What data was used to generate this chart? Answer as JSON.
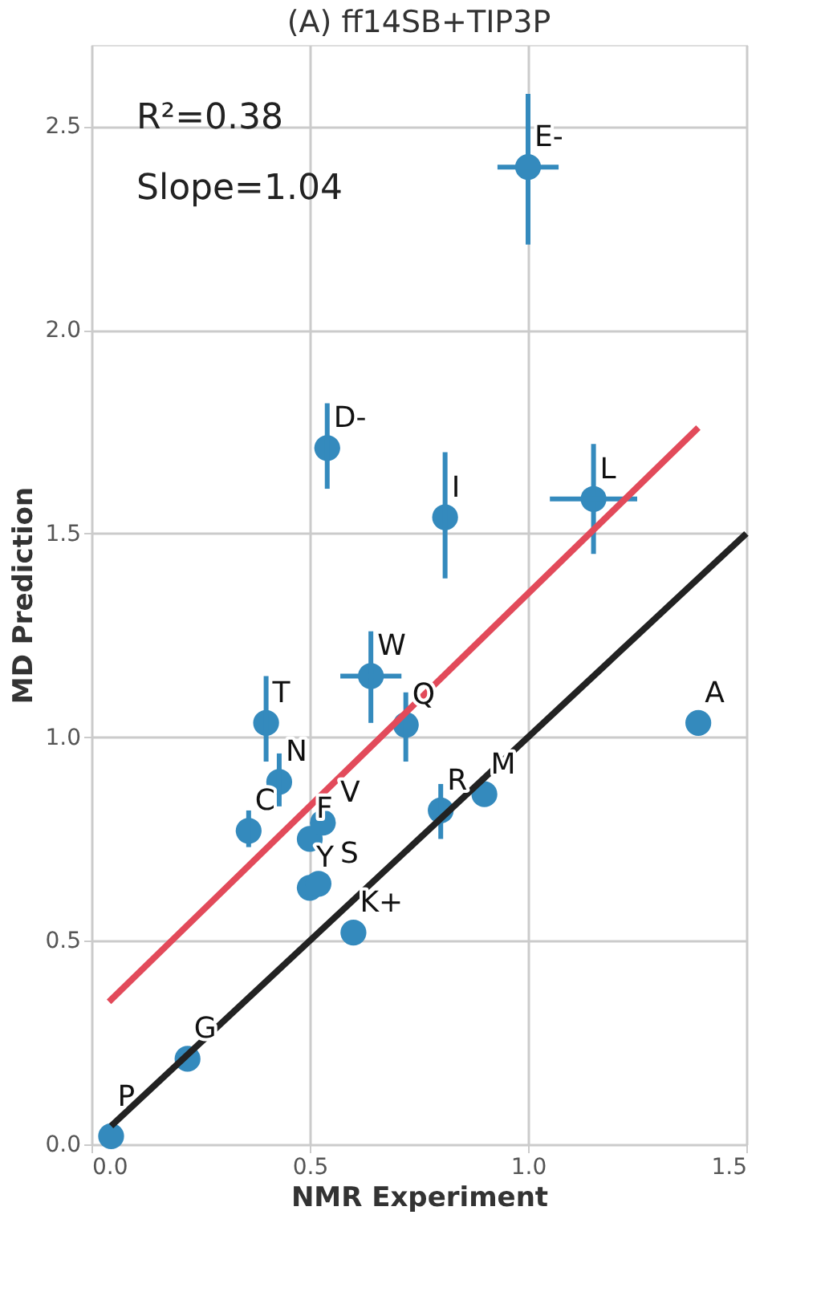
{
  "chart_data": {
    "type": "scatter",
    "title": "(A) ff14SB+TIP3P",
    "xlabel": "NMR Experiment",
    "ylabel": "MD Prediction",
    "xlim": [
      0,
      1.5
    ],
    "ylim": [
      0,
      2.7
    ],
    "xticks": [
      {
        "value": 0,
        "label": "0.0"
      },
      0.5,
      {
        "value": 1,
        "label": "1.0"
      },
      1.5
    ],
    "yticks": [
      {
        "value": 0,
        "label": "0.0"
      },
      0.5,
      {
        "value": 1,
        "label": "1.0"
      },
      1.5,
      {
        "value": 2,
        "label": "2.0"
      },
      2.5
    ],
    "grid": true,
    "marker": "circle",
    "series": [
      {
        "color": "#348abd",
        "x": [
          1.0,
          0.54,
          0.81,
          1.15,
          0.64,
          0.4,
          0.72,
          1.39,
          0.43,
          0.36,
          0.5,
          0.53,
          0.8,
          0.9,
          0.5,
          0.52,
          0.6,
          0.22,
          0.045
        ],
        "values": [
          2.4,
          1.71,
          1.54,
          1.585,
          1.15,
          1.035,
          1.03,
          1.035,
          0.89,
          0.77,
          0.75,
          0.79,
          0.82,
          0.86,
          0.63,
          0.64,
          0.52,
          0.21,
          0.02
        ],
        "errors": [
          [
            2.21,
            2.58
          ],
          [
            1.61,
            1.82
          ],
          [
            1.39,
            1.7
          ],
          [
            1.45,
            1.72
          ],
          [
            1.035,
            1.26
          ],
          [
            0.94,
            1.15
          ],
          [
            0.94,
            1.11
          ],
          null,
          [
            0.83,
            0.96
          ],
          [
            0.73,
            0.82
          ],
          null,
          null,
          [
            0.75,
            0.885
          ],
          null,
          null,
          null,
          null,
          null,
          null
        ],
        "xerrors": [
          [
            0.93,
            1.07
          ],
          null,
          null,
          [
            1.05,
            1.25
          ],
          [
            0.57,
            0.71
          ],
          null,
          null,
          null,
          null,
          null,
          null,
          null,
          null,
          null,
          null,
          null,
          null,
          null,
          null
        ]
      },
      {
        "type": "line",
        "marker": "none",
        "line_style": "solid",
        "color": "#e24a5a",
        "x": [
          0.04,
          1.39
        ],
        "values": [
          0.35,
          1.76
        ]
      },
      {
        "type": "line",
        "marker": "none",
        "line_style": "solid",
        "color": "#222222",
        "x": [
          0.045,
          1.5
        ],
        "values": [
          0.045,
          1.5
        ]
      }
    ],
    "annotations": [
      {
        "text": "E-",
        "x": 1.0,
        "y": 2.4
      },
      {
        "text": "D-",
        "x": 0.54,
        "y": 1.71
      },
      {
        "text": "I",
        "x": 0.81,
        "y": 1.54
      },
      {
        "text": "L",
        "x": 1.15,
        "y": 1.585
      },
      {
        "text": "W",
        "x": 0.64,
        "y": 1.15
      },
      {
        "text": "T",
        "x": 0.4,
        "y": 1.035
      },
      {
        "text": "Q",
        "x": 0.72,
        "y": 1.03
      },
      {
        "text": "A",
        "x": 1.39,
        "y": 1.035
      },
      {
        "text": "N",
        "x": 0.43,
        "y": 0.89
      },
      {
        "text": "C",
        "x": 0.36,
        "y": 0.77
      },
      {
        "text": "F",
        "x": 0.5,
        "y": 0.75
      },
      {
        "text": "V",
        "x": 0.53,
        "y": 0.79
      },
      {
        "text": "R",
        "x": 0.8,
        "y": 0.82
      },
      {
        "text": "M",
        "x": 0.9,
        "y": 0.86
      },
      {
        "text": "Y",
        "x": 0.5,
        "y": 0.63
      },
      {
        "text": "S",
        "x": 0.52,
        "y": 0.64
      },
      {
        "text": "K+",
        "x": 0.6,
        "y": 0.52
      },
      {
        "text": "G",
        "x": 0.22,
        "y": 0.21
      },
      {
        "text": "P",
        "x": 0.045,
        "y": 0.02
      },
      "R²=0.38",
      "Slope=1.04"
    ]
  }
}
